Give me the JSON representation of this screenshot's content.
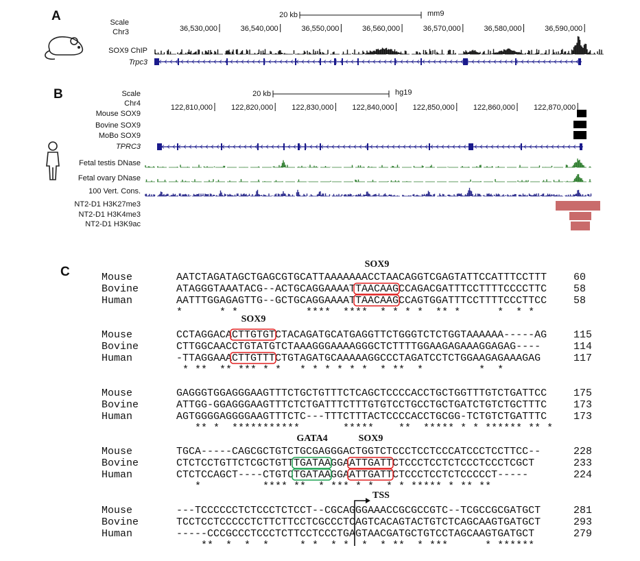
{
  "panel_a": {
    "label": "A",
    "scale_label": "Scale",
    "chrom": "Chr3",
    "scale_bar": "20 kb",
    "assembly": "mm9",
    "coordinates": [
      "36,530,000",
      "36,540,000",
      "36,550,000",
      "36,560,000",
      "36,570,000",
      "36,580,000",
      "36,590,000"
    ],
    "tracks": [
      "SOX9 ChIP",
      "Trpc3"
    ]
  },
  "panel_b": {
    "label": "B",
    "scale_label": "Scale",
    "chrom": "Chr4",
    "scale_bar": "20 kb",
    "assembly": "hg19",
    "coordinates": [
      "122,810,000",
      "122,820,000",
      "122,830,000",
      "122,840,000",
      "122,850,000",
      "122,860,000",
      "122,870,000"
    ],
    "tracks": [
      "Mouse SOX9",
      "Bovine SOX9",
      "MoBo SOX9",
      "TPRC3",
      "Fetal testis DNase",
      "Fetal ovary DNase",
      "100 Vert. Cons.",
      "NT2-D1 H3K27me3",
      "NT2-D1 H3K4me3",
      "NT2-D1 H3K9ac"
    ]
  },
  "panel_c": {
    "label": "C",
    "blocks": [
      {
        "rows": [
          {
            "species": "Mouse",
            "sequence": "AATCTAGATAGCTGAGCGTGCATTAAAAAAACCTAACAGGTCGAGTATTCCATTTCCTTT",
            "position": 60
          },
          {
            "species": "Bovine",
            "sequence": "ATAGGGTAAATACG--ACTGCAGGAAAATTAACAAGCCAGACGATTTCCTTTTCCCCTTC",
            "position": 58
          },
          {
            "species": "Human",
            "sequence": "AATTTGGAGAGTTG--GCTGCAGGAAAATTAACAAGCCAGTGGATTTCCTTTTCCCTTCC",
            "position": 58
          }
        ],
        "conservation": "*      * *           ****  ****  * * * *  ** *      *  * *",
        "motifs": [
          {
            "label": "SOX9",
            "color": "#e02020"
          }
        ]
      },
      {
        "rows": [
          {
            "species": "Mouse",
            "sequence": "CCTAGGACACTTGTGTCTACAGATGCATGAGGTTCTGGGTCTCTGGTAAAAAA-----AG",
            "position": 115
          },
          {
            "species": "Bovine",
            "sequence": "CTTGGCAACCTGTATGTCTAAAGGGAAAAGGGCTCTTTTGGAAGAGAAAGGAGAG----",
            "position": 114
          },
          {
            "species": "Human",
            "sequence": "-TTAGGAAACTTGTTTCTGTAGATGCAAAAAGGCCCTAGATCCTCTGGAAGAGAAAGAG",
            "position": 117
          }
        ],
        "conservation": " * **  ** *** * *   * * * * * *  * **  *         *  *",
        "motifs": [
          {
            "label": "SOX9",
            "color": "#e02020"
          }
        ]
      },
      {
        "rows": [
          {
            "species": "Mouse",
            "sequence": "GAGGGTGGAGGGAAGTTTCTGCTGTTTCTCAGCTCCCCACCTGCTGGTTTGTCTGATTCC",
            "position": 175
          },
          {
            "species": "Bovine",
            "sequence": "ATTGG-GGAGGGAAGTTTCTCTGATTTCTTTGTGTCCTGCCTGCTGATCTGTCTGCTTTC",
            "position": 173
          },
          {
            "species": "Human",
            "sequence": "AGTGGGGAGGGGAAGTTTCTC---TTTCTTTACTCCCCACCTGCGG-TCTGTCTGATTTC",
            "position": 173
          }
        ],
        "conservation": "   ** *  ***********       *****    **  ***** * * ****** ** *",
        "motifs": []
      },
      {
        "rows": [
          {
            "species": "Mouse",
            "sequence": "TGCA-----CAGCGCTGTCTGCGAGGGACTGGTCTCCCTCCTCCCATCCCTCCTTCC--",
            "position": 228
          },
          {
            "species": "Bovine",
            "sequence": "CTCTCCTGTTCTCGCTGTTTGATAAGGAATTGATTCTCCCTCCTCTCCCTCCCTCGCT",
            "position": 233
          },
          {
            "species": "Human",
            "sequence": "CTCTCCAGCT----CTGTCTGATAAGGAATTGATTCTCCCTCCTCTCCCCCT-----",
            "position": 224
          }
        ],
        "conservation": "   *          **** **  * *** * *  * * ***** * ** **",
        "motifs": [
          {
            "label": "GATA4",
            "color": "#1aa050"
          },
          {
            "label": "SOX9",
            "color": "#e02020"
          }
        ]
      },
      {
        "rows": [
          {
            "species": "Mouse",
            "sequence": "---TCCCCCCTCTCCCTCTCCT--CGCAGGGAAACCGCGCCGTC--TCGCCGCGATGCT",
            "position": 281
          },
          {
            "species": "Bovine",
            "sequence": "TCCTCCTCCCCCTCTTCTTCCTCGCCCTCAGTCACAGTACTGTCTCAGCAAGTGATGCT",
            "position": 293
          },
          {
            "species": "Human",
            "sequence": "-----CCCGCCCTCCCTCTTCCTCCCTGAGTAACGATGCTGTCCTAGCAAGTGATGCT",
            "position": 279
          }
        ],
        "conservation": "    **  *  *  *     * *  * *  *  * **  * ***      * ******",
        "motifs": [
          {
            "label": "TSS",
            "color": "#1f7fc0"
          }
        ]
      }
    ]
  }
}
